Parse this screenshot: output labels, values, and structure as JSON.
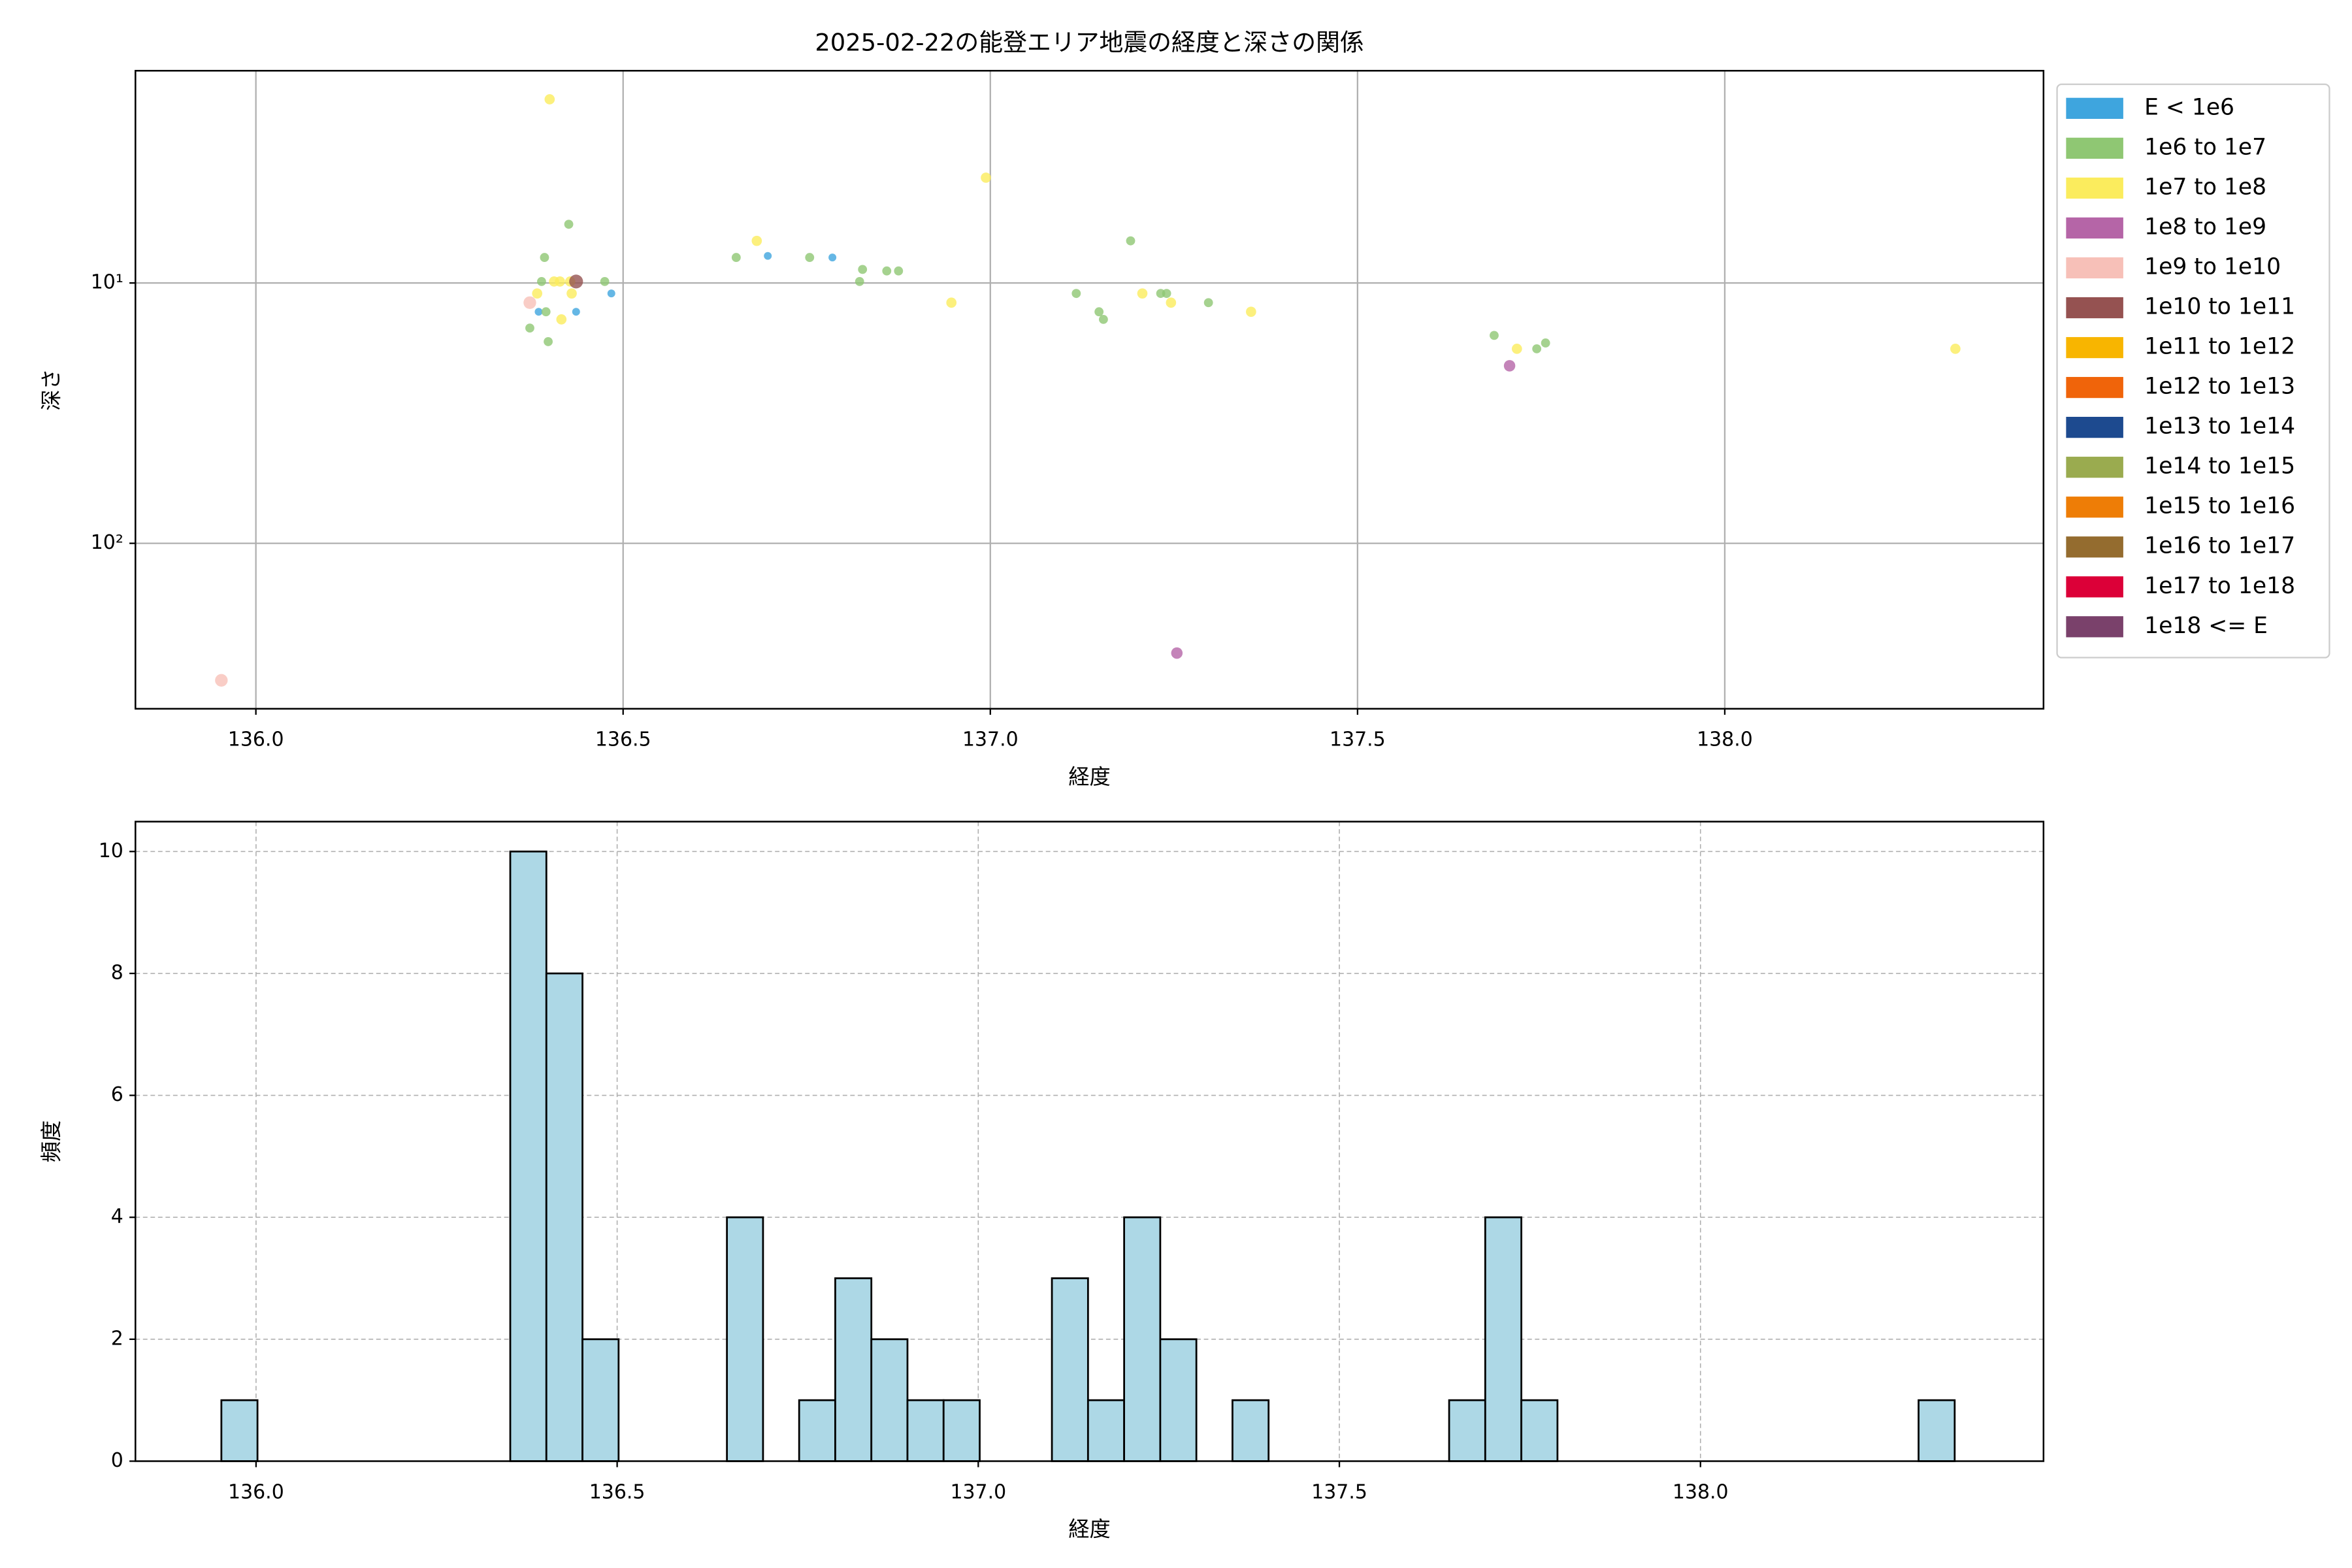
{
  "chart_data": [
    {
      "type": "scatter",
      "title": "2025-02-22の能登エリア地震の経度と深さの関係",
      "x_label": "経度",
      "y_label": "深さ",
      "xlim": [
        135.836,
        138.434
      ],
      "xticks": [
        {
          "value": 136,
          "label": "136.0"
        },
        {
          "value": 136.5,
          "label": "136.5"
        },
        {
          "value": 137,
          "label": "137.0"
        },
        {
          "value": 137.5,
          "label": "137.5"
        },
        {
          "value": 138,
          "label": "138.0"
        }
      ],
      "ylim": [
        1.53,
        432
      ],
      "yticks": [
        {
          "value": 10,
          "label": "10¹"
        },
        {
          "value": 100,
          "label": "10²"
        }
      ],
      "yscale": "log",
      "y_inverted": true,
      "grid": true,
      "legend": "outside right",
      "series": [
        {
          "name": "E < 1e6",
          "color": "#3ea5de",
          "x": [
            136.697,
            136.785,
            136.436,
            136.484,
            136.385
          ],
          "values": [
            7.87,
            7.98,
            12.9,
            10.97,
            12.9
          ]
        },
        {
          "name": "1e6 to 1e7",
          "color": "#8fc773",
          "x": [
            136.426,
            136.393,
            136.389,
            136.373,
            136.398,
            136.395,
            136.475,
            136.654,
            136.754,
            136.826,
            136.822,
            136.859,
            136.875,
            137.117,
            137.148,
            137.154,
            137.191,
            137.232,
            137.24,
            137.297,
            137.686,
            137.744,
            137.756
          ],
          "values": [
            5.95,
            7.98,
            9.87,
            14.9,
            16.8,
            12.9,
            9.87,
            7.98,
            7.98,
            8.87,
            9.87,
            8.99,
            8.99,
            10.97,
            12.9,
            13.8,
            6.89,
            10.97,
            10.97,
            11.9,
            15.9,
            17.9,
            17.0
          ]
        },
        {
          "name": "1e7 to 1e8",
          "color": "#fbec5d",
          "x": [
            136.4,
            136.994,
            136.682,
            136.414,
            136.428,
            136.406,
            136.383,
            136.43,
            136.416,
            136.947,
            137.207,
            137.246,
            137.355,
            137.717,
            138.314
          ],
          "values": [
            1.97,
            3.94,
            6.89,
            9.87,
            9.87,
            9.87,
            10.97,
            10.97,
            13.8,
            11.9,
            10.97,
            11.9,
            12.9,
            17.9,
            17.9
          ]
        },
        {
          "name": "1e8 to 1e9",
          "color": "#b565a7",
          "x": [
            137.707,
            137.254
          ],
          "values": [
            20.8,
            264
          ]
        },
        {
          "name": "1e9 to 1e10",
          "color": "#f7c0b8",
          "x": [
            135.953,
            136.373
          ],
          "values": [
            336,
            11.9
          ]
        },
        {
          "name": "1e10 to 1e11",
          "color": "#955251",
          "x": [
            136.436
          ],
          "values": [
            9.87
          ]
        },
        {
          "name": "1e11 to 1e12",
          "color": "#f8b500",
          "x": [],
          "values": []
        },
        {
          "name": "1e12 to 1e13",
          "color": "#f0640a",
          "x": [],
          "values": []
        },
        {
          "name": "1e13 to 1e14",
          "color": "#1d4a8f",
          "x": [],
          "values": []
        },
        {
          "name": "1e14 to 1e15",
          "color": "#9aab4f",
          "x": [],
          "values": []
        },
        {
          "name": "1e15 to 1e16",
          "color": "#ee7d06",
          "x": [],
          "values": []
        },
        {
          "name": "1e16 to 1e17",
          "color": "#946c2f",
          "x": [],
          "values": []
        },
        {
          "name": "1e17 to 1e18",
          "color": "#dc0038",
          "x": [],
          "values": []
        },
        {
          "name": "1e18 <= E",
          "color": "#7a416b",
          "x": [],
          "values": []
        }
      ]
    },
    {
      "type": "histogram",
      "x_label": "経度",
      "y_label": "頻度",
      "color": "#add8e6",
      "edgecolor": "#000000",
      "xlim": [
        135.833,
        138.475
      ],
      "xticks": [
        {
          "value": 136,
          "label": "136.0"
        },
        {
          "value": 136.5,
          "label": "136.5"
        },
        {
          "value": 137,
          "label": "137.0"
        },
        {
          "value": 137.5,
          "label": "137.5"
        },
        {
          "value": 138,
          "label": "138.0"
        }
      ],
      "ylim": [
        0,
        10.49
      ],
      "yticks": [
        0,
        2,
        4,
        6,
        8,
        10
      ],
      "grid": true,
      "bins": [
        135.952,
        136.002,
        136.052,
        136.102,
        136.152,
        136.202,
        136.252,
        136.302,
        136.352,
        136.402,
        136.452,
        136.502,
        136.552,
        136.602,
        136.652,
        136.702,
        136.752,
        136.802,
        136.852,
        136.902,
        136.952,
        137.002,
        137.052,
        137.102,
        137.152,
        137.202,
        137.252,
        137.302,
        137.352,
        137.402,
        137.452,
        137.502,
        137.552,
        137.602,
        137.652,
        137.702,
        137.752,
        137.802,
        137.852,
        137.902,
        137.952,
        138.002,
        138.052,
        138.102,
        138.152,
        138.202,
        138.252,
        138.302,
        138.352
      ],
      "values": [
        1,
        0,
        0,
        0,
        0,
        0,
        0,
        0,
        10,
        8,
        2,
        0,
        0,
        0,
        4,
        0,
        1,
        3,
        2,
        1,
        1,
        0,
        0,
        3,
        1,
        4,
        2,
        0,
        1,
        0,
        0,
        0,
        0,
        0,
        1,
        4,
        1,
        0,
        0,
        0,
        0,
        0,
        0,
        0,
        0,
        0,
        0,
        1
      ]
    }
  ]
}
